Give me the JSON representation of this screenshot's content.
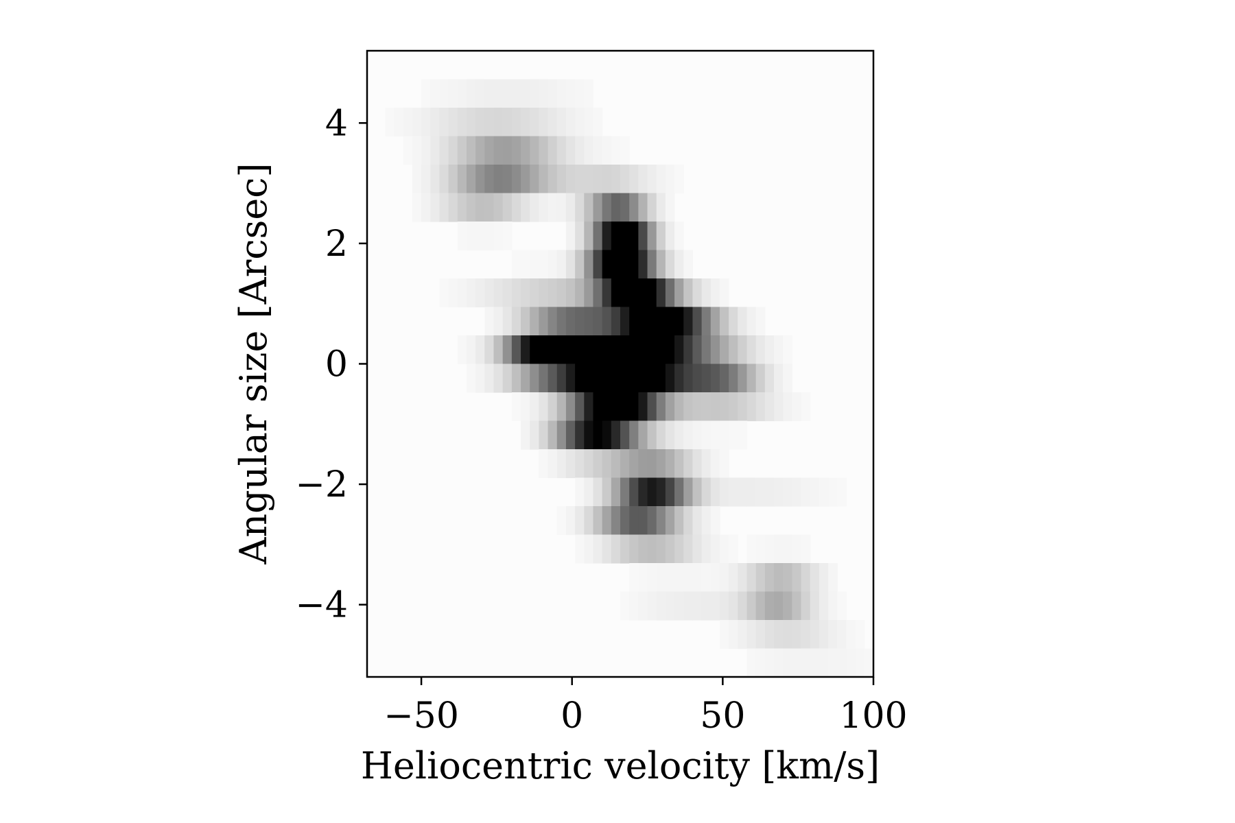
{
  "chart_data": {
    "type": "heatmap",
    "colormap": "grayscale (white = low, black = high)",
    "xlabel": "Heliocentric velocity [km/s]",
    "ylabel": "Angular size [Arcsec]",
    "xlim": [
      -68,
      100
    ],
    "ylim": [
      -5.2,
      5.2
    ],
    "xticks": [
      -50,
      0,
      50,
      100
    ],
    "xtick_labels": [
      "−50",
      "0",
      "50",
      "100"
    ],
    "yticks": [
      -4,
      -2,
      0,
      2,
      4
    ],
    "ytick_labels": [
      "−4",
      "−2",
      "0",
      "2",
      "4"
    ],
    "grid": false,
    "rows": [
      {
        "y": 4.4,
        "peak_velocity": -20,
        "velocity_width": 26,
        "intensity": 0.04
      },
      {
        "y": 4.0,
        "peak_velocity": -26,
        "velocity_width": 24,
        "intensity": 0.1
      },
      {
        "y": 3.5,
        "peak_velocity": -22,
        "velocity_width": 18,
        "intensity": 0.26
      },
      {
        "y": 3.1,
        "peak_velocity": -24,
        "velocity_width": 16,
        "intensity": 0.36
      },
      {
        "y": 2.6,
        "peak_velocity": 14,
        "velocity_width": 10,
        "intensity": 0.34
      },
      {
        "y": 2.2,
        "peak_velocity": 17,
        "velocity_width": 9,
        "intensity": 0.9
      },
      {
        "y": 1.7,
        "peak_velocity": 16,
        "velocity_width": 10,
        "intensity": 1.0
      },
      {
        "y": 1.2,
        "peak_velocity": 21,
        "velocity_width": 12,
        "intensity": 0.96
      },
      {
        "y": 0.7,
        "peak_velocity": 30,
        "velocity_width": 16,
        "intensity": 0.95
      },
      {
        "y": 0.2,
        "peak_velocity": 17,
        "velocity_width": 26,
        "intensity": 1.0
      },
      {
        "y": -0.2,
        "peak_velocity": 16,
        "velocity_width": 24,
        "intensity": 1.0
      },
      {
        "y": -0.7,
        "peak_velocity": 15,
        "velocity_width": 14,
        "intensity": 0.98
      },
      {
        "y": -1.2,
        "peak_velocity": 8,
        "velocity_width": 13,
        "intensity": 0.78
      },
      {
        "y": -1.6,
        "peak_velocity": 26,
        "velocity_width": 14,
        "intensity": 0.22
      },
      {
        "y": -2.1,
        "peak_velocity": 27,
        "velocity_width": 12,
        "intensity": 0.72
      },
      {
        "y": -2.6,
        "peak_velocity": 21,
        "velocity_width": 13,
        "intensity": 0.48
      },
      {
        "y": -3.0,
        "peak_velocity": 28,
        "velocity_width": 15,
        "intensity": 0.18
      },
      {
        "y": -3.5,
        "peak_velocity": 70,
        "velocity_width": 12,
        "intensity": 0.14
      },
      {
        "y": -3.9,
        "peak_velocity": 68,
        "velocity_width": 11,
        "intensity": 0.28
      },
      {
        "y": -4.4,
        "peak_velocity": 72,
        "velocity_width": 16,
        "intensity": 0.1
      },
      {
        "y": -4.9,
        "peak_velocity": 80,
        "velocity_width": 24,
        "intensity": 0.03
      }
    ],
    "secondary_rows": [
      {
        "y": 3.1,
        "peak_velocity": 8,
        "velocity_width": 20,
        "intensity": 0.1
      },
      {
        "y": 2.6,
        "peak_velocity": -30,
        "velocity_width": 14,
        "intensity": 0.18
      },
      {
        "y": 1.2,
        "peak_velocity": -8,
        "velocity_width": 24,
        "intensity": 0.12
      },
      {
        "y": 0.7,
        "peak_velocity": 0,
        "velocity_width": 14,
        "intensity": 0.4
      },
      {
        "y": 0.2,
        "peak_velocity": -12,
        "velocity_width": 10,
        "intensity": 0.6
      },
      {
        "y": -0.2,
        "peak_velocity": 50,
        "velocity_width": 12,
        "intensity": 0.35
      },
      {
        "y": -0.7,
        "peak_velocity": 50,
        "velocity_width": 18,
        "intensity": 0.14
      },
      {
        "y": -2.1,
        "peak_velocity": 60,
        "velocity_width": 26,
        "intensity": 0.05
      },
      {
        "y": -3.9,
        "peak_velocity": 40,
        "velocity_width": 20,
        "intensity": 0.06
      }
    ]
  }
}
